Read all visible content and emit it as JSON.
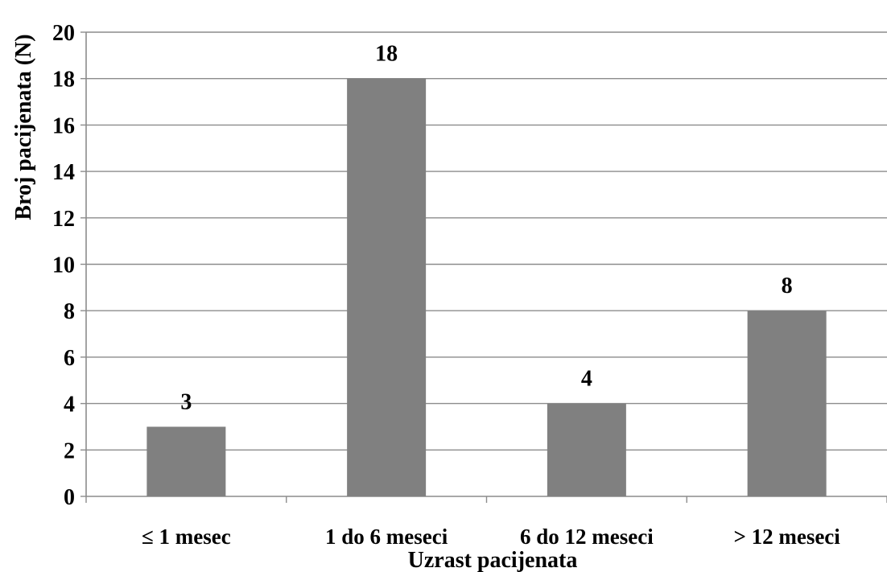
{
  "chart_data": {
    "type": "bar",
    "categories": [
      "≤ 1 mesec",
      "1 do 6 meseci",
      "6 do 12 meseci",
      "> 12 meseci"
    ],
    "values": [
      3,
      18,
      4,
      8
    ],
    "data_labels": [
      "3",
      "18",
      "4",
      "8"
    ],
    "title": "",
    "xlabel": "Uzrast pacijenata",
    "ylabel": "Broj pacijenata (N)",
    "ylim": [
      0,
      20
    ],
    "yticks": [
      0,
      2,
      4,
      6,
      8,
      10,
      12,
      14,
      16,
      18,
      20
    ],
    "grid": true,
    "legend": "none",
    "colors": {
      "bar": "#808080",
      "grid": "#8c8c8c",
      "axis": "#8c8c8c",
      "text": "#000000"
    }
  }
}
